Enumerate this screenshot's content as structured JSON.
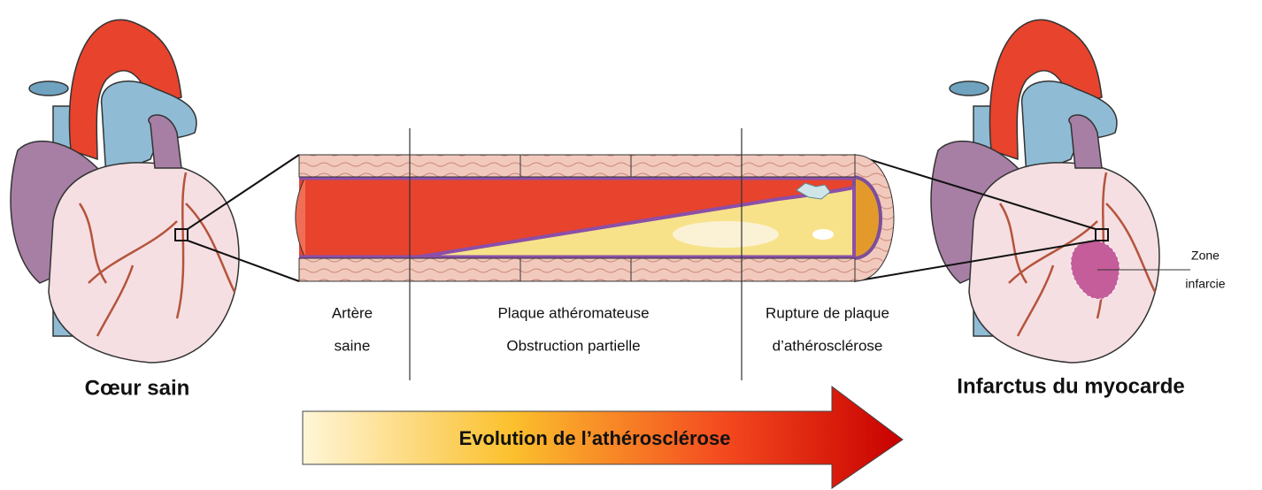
{
  "hearts": {
    "healthy": {
      "label": "Cœur sain"
    },
    "infarct": {
      "label": "Infarctus du myocarde",
      "zone_label": [
        "Zone",
        "infarcie"
      ]
    }
  },
  "stages": [
    {
      "lines": [
        "Artère",
        "saine"
      ]
    },
    {
      "lines": [
        "Plaque athéromateuse",
        "Obstruction partielle"
      ]
    },
    {
      "lines": [
        "Rupture de plaque",
        "d’athérosclérose"
      ]
    }
  ],
  "arrow": {
    "label": "Evolution de l’athérosclérose"
  }
}
